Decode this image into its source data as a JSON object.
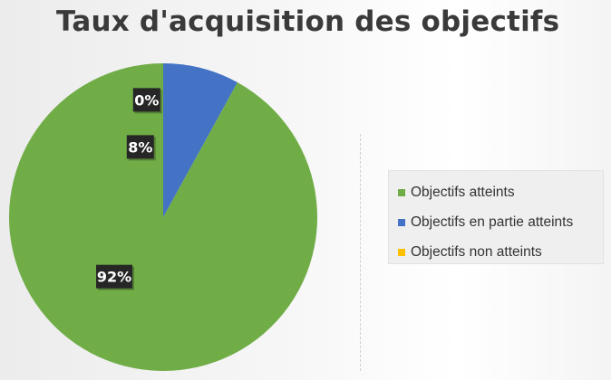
{
  "chart_data": {
    "type": "pie",
    "title": "Taux d'acquisition des objectifs",
    "categories": [
      "Objectifs atteints",
      "Objectifs en partie atteints",
      "Objectifs non atteints"
    ],
    "values": [
      92,
      8,
      0
    ],
    "data_labels": [
      "92%",
      "8%",
      "0%"
    ],
    "colors": [
      "#70AD47",
      "#4472C4",
      "#FFC000"
    ],
    "start_angle_deg": 0,
    "direction": "counterclockwise",
    "legend_position": "right"
  }
}
